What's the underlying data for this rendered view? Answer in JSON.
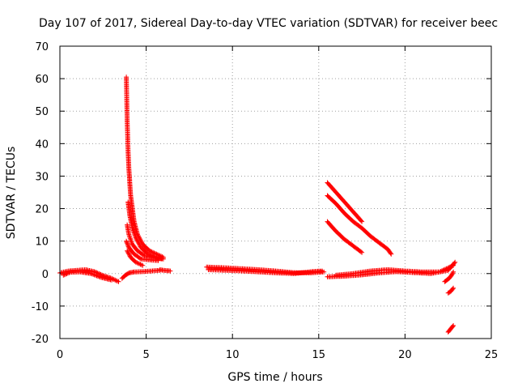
{
  "chart_data": {
    "type": "scatter",
    "title": "Day 107 of 2017, Sidereal Day-to-day VTEC variation (SDTVAR) for receiver beec",
    "xlabel": "GPS time / hours",
    "ylabel": "SDTVAR / TECUs",
    "xlim": [
      0,
      25
    ],
    "ylim": [
      -20,
      70
    ],
    "xticks": [
      "0",
      "5",
      "10",
      "15",
      "20",
      "25"
    ],
    "yticks": [
      "-20",
      "-10",
      "0",
      "10",
      "20",
      "30",
      "40",
      "50",
      "60",
      "70"
    ],
    "grid": true,
    "marker": "+",
    "color": "#ff0000",
    "series": [
      {
        "name": "SDTVAR",
        "segments": [
          [
            [
              0.0,
              0.2
            ],
            [
              0.5,
              0.8
            ],
            [
              1.0,
              1.0
            ],
            [
              1.5,
              1.2
            ],
            [
              2.0,
              0.6
            ],
            [
              2.5,
              -0.6
            ],
            [
              3.0,
              -1.5
            ],
            [
              3.4,
              -2.5
            ]
          ],
          [
            [
              0.2,
              -0.5
            ],
            [
              0.6,
              0.4
            ],
            [
              1.2,
              0.5
            ],
            [
              1.8,
              0.0
            ],
            [
              2.4,
              -1.2
            ],
            [
              3.0,
              -2.0
            ]
          ],
          [
            [
              3.6,
              -1.5
            ],
            [
              3.8,
              -0.5
            ],
            [
              4.0,
              0.2
            ],
            [
              4.3,
              0.5
            ],
            [
              4.8,
              0.6
            ],
            [
              5.3,
              0.8
            ],
            [
              5.8,
              1.0
            ]
          ],
          [
            [
              3.85,
              60.5
            ],
            [
              3.9,
              47
            ],
            [
              3.95,
              38
            ],
            [
              4.0,
              32
            ],
            [
              4.05,
              28
            ],
            [
              4.1,
              24
            ],
            [
              4.2,
              20
            ],
            [
              4.3,
              16
            ],
            [
              4.5,
              12
            ],
            [
              4.8,
              9
            ],
            [
              5.2,
              7
            ],
            [
              5.6,
              6
            ],
            [
              6.0,
              5
            ]
          ],
          [
            [
              3.95,
              22
            ],
            [
              4.05,
              18
            ],
            [
              4.2,
              14
            ],
            [
              4.4,
              11
            ],
            [
              4.7,
              8
            ],
            [
              5.1,
              6
            ],
            [
              5.6,
              5
            ],
            [
              6.0,
              4.5
            ]
          ],
          [
            [
              3.9,
              15
            ],
            [
              4.0,
              12
            ],
            [
              4.2,
              9
            ],
            [
              4.5,
              7
            ],
            [
              4.9,
              5.5
            ],
            [
              5.4,
              5
            ],
            [
              5.9,
              4.5
            ]
          ],
          [
            [
              3.85,
              10
            ],
            [
              4.0,
              8
            ],
            [
              4.3,
              6
            ],
            [
              4.7,
              4.5
            ],
            [
              5.2,
              4.2
            ],
            [
              5.7,
              4
            ]
          ],
          [
            [
              3.9,
              7
            ],
            [
              4.1,
              5
            ],
            [
              4.4,
              3.5
            ],
            [
              4.8,
              2.5
            ]
          ],
          [
            [
              5.8,
              1.2
            ],
            [
              6.0,
              1.0
            ],
            [
              6.2,
              0.9
            ],
            [
              6.4,
              0.8
            ]
          ],
          [
            [
              8.5,
              2.0
            ],
            [
              9.5,
              1.8
            ],
            [
              10.5,
              1.5
            ],
            [
              11.5,
              1.2
            ],
            [
              12.5,
              0.8
            ],
            [
              13.5,
              0.3
            ],
            [
              14.5,
              0.2
            ],
            [
              15.3,
              0.5
            ]
          ],
          [
            [
              8.6,
              1.2
            ],
            [
              9.6,
              1.0
            ],
            [
              10.6,
              0.8
            ],
            [
              11.6,
              0.5
            ],
            [
              12.6,
              0.2
            ],
            [
              13.6,
              0.0
            ],
            [
              14.6,
              0.6
            ],
            [
              15.2,
              0.8
            ]
          ],
          [
            [
              15.5,
              28
            ],
            [
              16.0,
              25
            ],
            [
              16.5,
              22
            ],
            [
              17.0,
              19
            ],
            [
              17.5,
              16
            ]
          ],
          [
            [
              15.5,
              24
            ],
            [
              16.0,
              21.5
            ],
            [
              16.5,
              18.5
            ],
            [
              17.0,
              16
            ],
            [
              17.5,
              14
            ],
            [
              18.0,
              11.5
            ],
            [
              18.5,
              9.5
            ],
            [
              19.0,
              7.5
            ],
            [
              19.2,
              6
            ]
          ],
          [
            [
              15.5,
              16
            ],
            [
              16.0,
              13
            ],
            [
              16.5,
              10.5
            ],
            [
              17.0,
              8.5
            ],
            [
              17.5,
              6.5
            ]
          ],
          [
            [
              15.5,
              -1.0
            ],
            [
              16.5,
              -0.8
            ],
            [
              17.5,
              -0.4
            ],
            [
              18.5,
              0.2
            ],
            [
              19.5,
              0.6
            ],
            [
              20.5,
              0.3
            ],
            [
              21.5,
              0.0
            ],
            [
              22.5,
              1.0
            ],
            [
              22.9,
              3.5
            ]
          ],
          [
            [
              16.0,
              -0.5
            ],
            [
              17.0,
              0.0
            ],
            [
              18.0,
              0.8
            ],
            [
              19.0,
              1.2
            ],
            [
              20.0,
              0.8
            ],
            [
              21.0,
              0.5
            ],
            [
              22.0,
              0.5
            ],
            [
              22.8,
              2.5
            ]
          ],
          [
            [
              22.3,
              -2.5
            ],
            [
              22.55,
              -1.5
            ],
            [
              22.7,
              -0.5
            ],
            [
              22.8,
              0.5
            ]
          ],
          [
            [
              22.5,
              -6
            ],
            [
              22.65,
              -5.5
            ],
            [
              22.8,
              -4.5
            ]
          ],
          [
            [
              22.5,
              -18
            ],
            [
              22.65,
              -17
            ],
            [
              22.8,
              -16
            ]
          ]
        ]
      }
    ]
  }
}
